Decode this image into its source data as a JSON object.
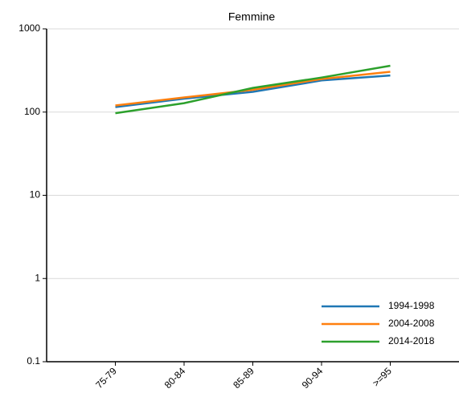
{
  "chart_data": {
    "type": "line",
    "title": "Femmine",
    "categories": [
      "75-79",
      "80-84",
      "85-89",
      "90-94",
      ">=95"
    ],
    "series": [
      {
        "name": "1994-1998",
        "color": "#1f77b4",
        "values": [
          115,
          145,
          175,
          240,
          275
        ]
      },
      {
        "name": "2004-2008",
        "color": "#ff7f0e",
        "values": [
          120,
          150,
          185,
          250,
          305
        ]
      },
      {
        "name": "2014-2018",
        "color": "#2ca02c",
        "values": [
          97,
          128,
          195,
          260,
          360
        ]
      }
    ],
    "ylim": [
      0.1,
      1000
    ],
    "yticks": [
      0.1,
      1,
      10,
      100,
      1000
    ],
    "yscale": "log",
    "grid": true,
    "legend": "lower right"
  }
}
